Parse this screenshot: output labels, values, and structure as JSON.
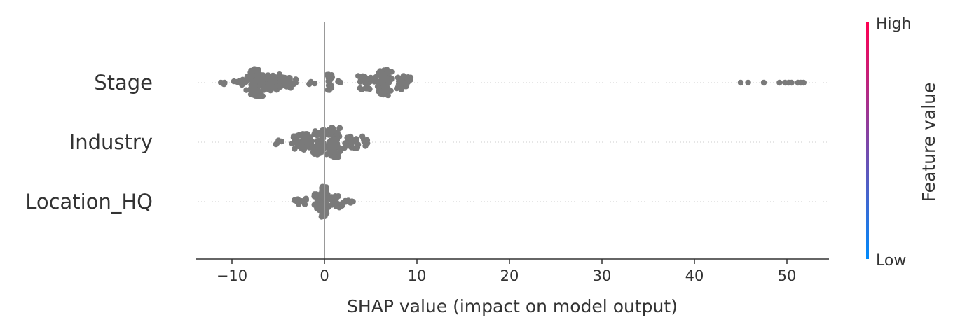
{
  "chart_data": {
    "type": "scatter",
    "subtype": "shap-beeswarm",
    "xlabel": "SHAP value (impact on model output)",
    "xlim": [
      -14,
      55
    ],
    "xticks": [
      -10,
      0,
      10,
      20,
      30,
      40,
      50
    ],
    "xtick_labels": [
      "−10",
      "0",
      "10",
      "20",
      "30",
      "40",
      "50"
    ],
    "zero_line": true,
    "grid": false,
    "point_color": "#7a7a7a",
    "features": [
      {
        "name": "Stage",
        "clusters": [
          {
            "center": -11,
            "spread": 0.3,
            "count": 3,
            "height": 0.15
          },
          {
            "center": -9,
            "spread": 0.8,
            "count": 12,
            "height": 0.2
          },
          {
            "center": -7.5,
            "spread": 0.6,
            "count": 90,
            "height": 0.9
          },
          {
            "center": -6,
            "spread": 0.9,
            "count": 45,
            "height": 0.55
          },
          {
            "center": -4,
            "spread": 0.9,
            "count": 30,
            "height": 0.35
          },
          {
            "center": -1.5,
            "spread": 0.3,
            "count": 3,
            "height": 0.1
          },
          {
            "center": 0.5,
            "spread": 0.4,
            "count": 18,
            "height": 0.55
          },
          {
            "center": 1.5,
            "spread": 0.3,
            "count": 3,
            "height": 0.1
          },
          {
            "center": 4.5,
            "spread": 0.8,
            "count": 25,
            "height": 0.5
          },
          {
            "center": 6.5,
            "spread": 0.6,
            "count": 80,
            "height": 0.85
          },
          {
            "center": 8.5,
            "spread": 0.8,
            "count": 30,
            "height": 0.45
          }
        ],
        "points": [
          -11.2,
          -10.8,
          45,
          45.8,
          47.5,
          49.2,
          49.8,
          50.5,
          51.2,
          51.8,
          51.5,
          50.2
        ]
      },
      {
        "name": "Industry",
        "clusters": [
          {
            "center": -5,
            "spread": 0.5,
            "count": 5,
            "height": 0.15
          },
          {
            "center": -2.5,
            "spread": 0.9,
            "count": 40,
            "height": 0.55
          },
          {
            "center": -0.5,
            "spread": 0.8,
            "count": 60,
            "height": 0.8
          },
          {
            "center": 1,
            "spread": 0.6,
            "count": 80,
            "height": 1.0
          },
          {
            "center": 2.8,
            "spread": 0.8,
            "count": 25,
            "height": 0.4
          },
          {
            "center": 4.3,
            "spread": 0.4,
            "count": 8,
            "height": 0.25
          }
        ],
        "points": []
      },
      {
        "name": "Location_HQ",
        "clusters": [
          {
            "center": -2.5,
            "spread": 0.6,
            "count": 10,
            "height": 0.2
          },
          {
            "center": -0.5,
            "spread": 0.6,
            "count": 40,
            "height": 0.55
          },
          {
            "center": 0,
            "spread": 0.3,
            "count": 70,
            "height": 1.0
          },
          {
            "center": 1,
            "spread": 0.7,
            "count": 25,
            "height": 0.4
          },
          {
            "center": 2.5,
            "spread": 0.5,
            "count": 6,
            "height": 0.15
          }
        ],
        "points": []
      }
    ],
    "colorbar": {
      "label": "Feature value",
      "high_label": "High",
      "low_label": "Low",
      "high_color": "#ff0052",
      "low_color": "#008afb"
    }
  }
}
